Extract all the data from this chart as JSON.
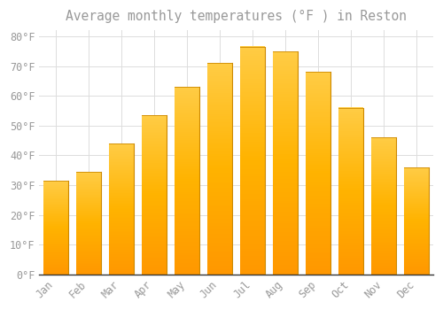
{
  "title": "Average monthly temperatures (°F ) in Reston",
  "months": [
    "Jan",
    "Feb",
    "Mar",
    "Apr",
    "May",
    "Jun",
    "Jul",
    "Aug",
    "Sep",
    "Oct",
    "Nov",
    "Dec"
  ],
  "values": [
    31.5,
    34.5,
    44.0,
    53.5,
    63.0,
    71.0,
    76.5,
    75.0,
    68.0,
    56.0,
    46.0,
    36.0
  ],
  "bar_color_left": "#FFB300",
  "bar_color_right": "#FF9500",
  "bar_edge_color": "#CC7700",
  "background_color": "#FFFFFF",
  "grid_color": "#DDDDDD",
  "text_color": "#999999",
  "axis_line_color": "#333333",
  "ylim": [
    0,
    82
  ],
  "yticks": [
    0,
    10,
    20,
    30,
    40,
    50,
    60,
    70,
    80
  ],
  "title_fontsize": 10.5,
  "tick_fontsize": 8.5,
  "bar_width": 0.75
}
